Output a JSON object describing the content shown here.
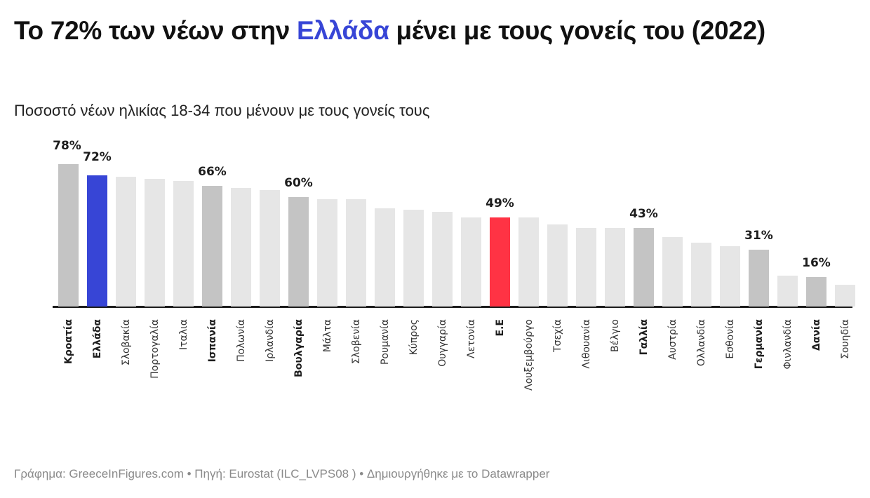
{
  "header": {
    "title_pre": "Το 72% των νέων στην ",
    "title_highlight": "Ελλάδα",
    "title_post": " μένει με τους γονείς του (2022)",
    "subtitle": "Ποσοστό νέων ηλικίας 18-34 που μένουν με τους γονείς τους"
  },
  "footer": {
    "text": "Γράφημα: GreeceInFigures.com • Πηγή: Eurostat (ILC_LVPS08 ) • Δημιουργήθηκε με το Datawrapper"
  },
  "colors": {
    "highlight_greece": "#3745d6",
    "highlight_eu": "#ff3344",
    "emphasis_gray": "#c4c4c4",
    "default_gray": "#e6e6e6",
    "axis": "#1d1d1d"
  },
  "chart_data": {
    "type": "bar",
    "title": "Το 72% των νέων στην Ελλάδα μένει με τους γονείς του (2022)",
    "subtitle": "Ποσοστό νέων ηλικίας 18-34 που μένουν με τους γονείς τους",
    "xlabel": "",
    "ylabel": "",
    "ylim": [
      0,
      80
    ],
    "grid": false,
    "categories": [
      "Κροατία",
      "Ελλάδα",
      "Σλοβακία",
      "Πορτογαλία",
      "Ιταλια",
      "Ισπανία",
      "Πολωνία",
      "Ιρλανδία",
      "Βουλγαρία",
      "Μάλτα",
      "Σλοβενία",
      "Ρουμανία",
      "Κύπρος",
      "Ουγγαρία",
      "Λετονία",
      "Ε.Ε",
      "Λουξεμβούργο",
      "Τσεχία",
      "Λιθουανία",
      "Βέλγιο",
      "Γαλλία",
      "Αυστρία",
      "Ολλανδία",
      "Εσθονία",
      "Γερμανία",
      "Φινλανδία",
      "Δανία",
      "Σουηδία"
    ],
    "values": [
      78,
      72,
      71,
      70,
      69,
      66,
      65,
      64,
      60,
      59,
      59,
      54,
      53,
      52,
      49,
      49,
      49,
      45,
      43,
      43,
      43,
      38,
      35,
      33,
      31,
      17,
      16,
      12
    ],
    "labeled": [
      true,
      true,
      false,
      false,
      false,
      true,
      false,
      false,
      true,
      false,
      false,
      false,
      false,
      false,
      false,
      true,
      false,
      false,
      false,
      false,
      true,
      false,
      false,
      false,
      true,
      false,
      true,
      false
    ],
    "bold_labels": [
      true,
      true,
      false,
      false,
      false,
      true,
      false,
      false,
      true,
      false,
      false,
      false,
      false,
      false,
      false,
      true,
      false,
      false,
      false,
      false,
      true,
      false,
      false,
      false,
      true,
      false,
      true,
      false
    ],
    "bar_colors": [
      "#c4c4c4",
      "#3745d6",
      "#e6e6e6",
      "#e6e6e6",
      "#e6e6e6",
      "#c4c4c4",
      "#e6e6e6",
      "#e6e6e6",
      "#c4c4c4",
      "#e6e6e6",
      "#e6e6e6",
      "#e6e6e6",
      "#e6e6e6",
      "#e6e6e6",
      "#e6e6e6",
      "#ff3344",
      "#e6e6e6",
      "#e6e6e6",
      "#e6e6e6",
      "#e6e6e6",
      "#c4c4c4",
      "#e6e6e6",
      "#e6e6e6",
      "#e6e6e6",
      "#c4c4c4",
      "#e6e6e6",
      "#c4c4c4",
      "#e6e6e6"
    ],
    "value_suffix": "%"
  }
}
